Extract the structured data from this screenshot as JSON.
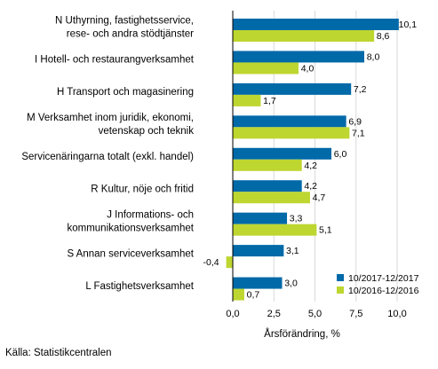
{
  "chart_data": {
    "type": "bar",
    "orientation": "horizontal",
    "categories": [
      [
        "N Uthyrning, fastighetsservice,",
        "rese- och andra stödtjänster"
      ],
      [
        "I Hotell- och restaurangverksamhet"
      ],
      [
        "H Transport och magasinering"
      ],
      [
        "M Verksamhet inom juridik, ekonomi,",
        "vetenskap och teknik"
      ],
      [
        "Servicenäringarna totalt (exkl. handel)"
      ],
      [
        "R Kultur, nöje och fritid"
      ],
      [
        "J Informations- och",
        "kommunikationsverksamhet"
      ],
      [
        "S Annan serviceverksamhet"
      ],
      [
        "L Fastighetsverksamhet"
      ]
    ],
    "series": [
      {
        "name": "10/2017-12/2017",
        "color": "#0069a8",
        "values": [
          10.1,
          8.0,
          7.2,
          6.9,
          6.0,
          4.2,
          3.3,
          3.1,
          3.0
        ],
        "labels": [
          "10,1",
          "8,0",
          "7,2",
          "6,9",
          "6,0",
          "4,2",
          "3,3",
          "3,1",
          "3,0"
        ]
      },
      {
        "name": "10/2016-12/2016",
        "color": "#bed630",
        "values": [
          8.6,
          4.0,
          1.7,
          7.1,
          4.2,
          4.7,
          5.1,
          -0.4,
          0.7
        ],
        "labels": [
          "8,6",
          "4,0",
          "1,7",
          "7,1",
          "4,2",
          "4,7",
          "5,1",
          "-0,4",
          "0,7"
        ]
      }
    ],
    "xlabel": "Årsförändring, %",
    "xlim": [
      -1.6,
      11.0
    ],
    "xticks": [
      0,
      2.5,
      5,
      7.5,
      10
    ],
    "xtick_labels": [
      "0,0",
      "2,5",
      "5,0",
      "7,5",
      "10,0"
    ],
    "grid": "vertical",
    "legend_position": "bottom-right"
  },
  "source": "Källa: Statistikcentralen"
}
